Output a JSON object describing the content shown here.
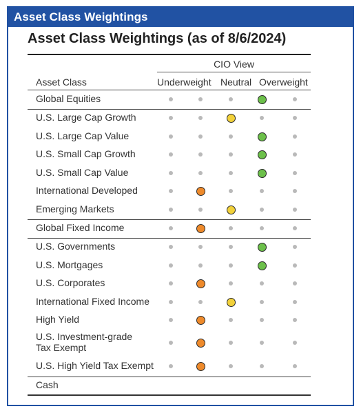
{
  "banner": {
    "title": "Asset Class Weightings"
  },
  "table": {
    "title": "Asset Class Weightings (as of 8/6/2024)",
    "cio_view_label": "CIO View",
    "columns": {
      "asset_class": "Asset Class",
      "underweight": "Underweight",
      "neutral": "Neutral",
      "overweight": "Overweight"
    },
    "scale_positions": 5,
    "colors": {
      "overweight": "#6cc04a",
      "neutral": "#f2d13a",
      "underweight": "#ee8a2b",
      "inactive_dot": "#b9b9b9",
      "banner": "#2152a3"
    },
    "rows": [
      {
        "label": "Global Equities",
        "position": 4,
        "color": "overweight"
      },
      {
        "label": "U.S. Large Cap Growth",
        "position": 3,
        "color": "neutral"
      },
      {
        "label": "U.S. Large Cap Value",
        "position": 4,
        "color": "overweight"
      },
      {
        "label": "U.S. Small Cap Growth",
        "position": 4,
        "color": "overweight"
      },
      {
        "label": "U.S. Small Cap Value",
        "position": 4,
        "color": "overweight"
      },
      {
        "label": "International Developed",
        "position": 2,
        "color": "underweight"
      },
      {
        "label": "Emerging Markets",
        "position": 3,
        "color": "neutral"
      },
      {
        "label": "Global Fixed Income",
        "position": 2,
        "color": "underweight"
      },
      {
        "label": "U.S. Governments",
        "position": 4,
        "color": "overweight"
      },
      {
        "label": "U.S. Mortgages",
        "position": 4,
        "color": "overweight"
      },
      {
        "label": "U.S. Corporates",
        "position": 2,
        "color": "underweight"
      },
      {
        "label": "International Fixed Income",
        "position": 3,
        "color": "neutral"
      },
      {
        "label": "High Yield",
        "position": 2,
        "color": "underweight"
      },
      {
        "label": "U.S. Investment-grade\nTax Exempt",
        "position": 2,
        "color": "underweight"
      },
      {
        "label": "U.S. High Yield Tax Exempt",
        "position": 2,
        "color": "underweight"
      },
      {
        "label": "Cash",
        "position": null,
        "color": null
      }
    ]
  }
}
